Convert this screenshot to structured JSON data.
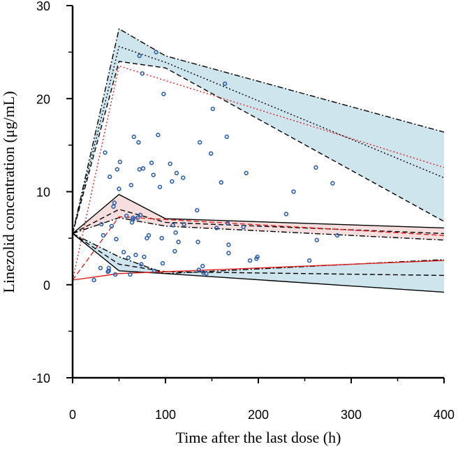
{
  "chart_data": {
    "type": "scatter",
    "title": "",
    "xlabel": "Time after the last dose (h)",
    "ylabel": "Linezolid concentration (μg/mL)",
    "xlim": [
      0,
      400
    ],
    "ylim": [
      -10,
      30
    ],
    "x_ticks": [
      0,
      100,
      200,
      300,
      400
    ],
    "x_tick_labels": [
      "0",
      "100",
      "200",
      "300",
      "400"
    ],
    "y_ticks": [
      -10,
      0,
      10,
      20,
      30
    ],
    "y_tick_labels": [
      "-10",
      "0",
      "10",
      "20",
      "30"
    ],
    "colors": {
      "points": "#2f5da8",
      "observed": "#e02020",
      "outer_band_fill": "#cfe5ee",
      "median_band_fill": "#f7dede",
      "simulated": "#000000"
    },
    "bands": [
      {
        "name": "95th percentile prediction interval",
        "fill": "#cfe5ee",
        "upper": {
          "x": [
            0,
            50,
            100,
            400
          ],
          "y": [
            5.5,
            27.5,
            24.6,
            16.4
          ]
        },
        "lower": {
          "x": [
            0,
            50,
            100,
            400
          ],
          "y": [
            5.5,
            24.0,
            23.3,
            6.8
          ]
        }
      },
      {
        "name": "median prediction interval",
        "fill": "#f7dede",
        "upper": {
          "x": [
            0,
            50,
            100,
            400
          ],
          "y": [
            5.5,
            9.7,
            7.1,
            6.1
          ]
        },
        "lower": {
          "x": [
            0,
            50,
            100,
            400
          ],
          "y": [
            5.5,
            7.2,
            6.3,
            4.8
          ]
        }
      },
      {
        "name": "5th percentile prediction interval",
        "fill": "#cfe5ee",
        "upper": {
          "x": [
            0,
            50,
            100,
            400
          ],
          "y": [
            5.5,
            3.0,
            1.2,
            2.7
          ]
        },
        "lower": {
          "x": [
            0,
            50,
            100,
            400
          ],
          "y": [
            5.5,
            1.5,
            1.2,
            -0.8
          ]
        }
      }
    ],
    "series": [
      {
        "name": "95th upper CI",
        "style": "dashdot",
        "color": "#000000",
        "x": [
          0,
          50,
          100,
          400
        ],
        "y": [
          5.5,
          27.5,
          24.6,
          16.4
        ]
      },
      {
        "name": "95th median",
        "style": "dotted",
        "color": "#000000",
        "x": [
          0,
          50,
          100,
          400
        ],
        "y": [
          5.5,
          25.6,
          23.9,
          11.5
        ]
      },
      {
        "name": "95th lower CI",
        "style": "dashed",
        "color": "#000000",
        "x": [
          0,
          50,
          100,
          400
        ],
        "y": [
          5.5,
          24.0,
          23.3,
          6.8
        ]
      },
      {
        "name": "95th observed",
        "style": "dotted",
        "color": "#e02020",
        "x": [
          0,
          50,
          400
        ],
        "y": [
          0.5,
          23.5,
          12.6
        ]
      },
      {
        "name": "median upper CI",
        "style": "solid",
        "color": "#000000",
        "x": [
          0,
          50,
          100,
          400
        ],
        "y": [
          5.5,
          9.7,
          7.1,
          6.1
        ]
      },
      {
        "name": "median median",
        "style": "dashed",
        "color": "#000000",
        "x": [
          0,
          50,
          100,
          400
        ],
        "y": [
          5.5,
          8.1,
          6.7,
          5.5
        ]
      },
      {
        "name": "median lower CI",
        "style": "dashdot",
        "color": "#000000",
        "x": [
          0,
          50,
          100,
          400
        ],
        "y": [
          5.5,
          7.2,
          6.3,
          4.8
        ]
      },
      {
        "name": "median observed",
        "style": "dashed",
        "color": "#e02020",
        "x": [
          0,
          50,
          400
        ],
        "y": [
          0.5,
          7.3,
          5.3
        ]
      },
      {
        "name": "5th upper CI",
        "style": "dashdot",
        "color": "#000000",
        "x": [
          0,
          50,
          100,
          400
        ],
        "y": [
          5.5,
          3.0,
          1.2,
          2.7
        ]
      },
      {
        "name": "5th median",
        "style": "dashed",
        "color": "#000000",
        "x": [
          0,
          50,
          100,
          400
        ],
        "y": [
          5.5,
          2.2,
          1.4,
          1.0
        ]
      },
      {
        "name": "5th lower CI",
        "style": "solid",
        "color": "#000000",
        "x": [
          0,
          50,
          100,
          400
        ],
        "y": [
          5.5,
          1.5,
          1.2,
          -0.8
        ]
      },
      {
        "name": "5th observed",
        "style": "solid",
        "color": "#e02020",
        "x": [
          0,
          50,
          400
        ],
        "y": [
          0.5,
          1.2,
          2.6
        ]
      }
    ],
    "points": [
      {
        "x": 23,
        "y": 0.5
      },
      {
        "x": 30,
        "y": 1.8
      },
      {
        "x": 31,
        "y": 6.5
      },
      {
        "x": 33,
        "y": 5.3
      },
      {
        "x": 35,
        "y": 14.2
      },
      {
        "x": 38,
        "y": 1.4
      },
      {
        "x": 39,
        "y": 1.8
      },
      {
        "x": 39,
        "y": 1.5
      },
      {
        "x": 40,
        "y": 11.6
      },
      {
        "x": 42,
        "y": 6.3
      },
      {
        "x": 44,
        "y": 8.4
      },
      {
        "x": 45,
        "y": 8.8
      },
      {
        "x": 46,
        "y": 1.1
      },
      {
        "x": 47,
        "y": 4.9
      },
      {
        "x": 48,
        "y": 12.4
      },
      {
        "x": 50,
        "y": 10.3
      },
      {
        "x": 51,
        "y": 13.2
      },
      {
        "x": 55,
        "y": 3.5
      },
      {
        "x": 58,
        "y": 7.4
      },
      {
        "x": 60,
        "y": 2.9
      },
      {
        "x": 62,
        "y": 1.1
      },
      {
        "x": 63,
        "y": 10.7
      },
      {
        "x": 64,
        "y": 6.7
      },
      {
        "x": 65,
        "y": 7.2
      },
      {
        "x": 65,
        "y": 7.0
      },
      {
        "x": 66,
        "y": 15.9
      },
      {
        "x": 68,
        "y": 3.2
      },
      {
        "x": 70,
        "y": 7.2
      },
      {
        "x": 71,
        "y": 15.3
      },
      {
        "x": 72,
        "y": 24.6
      },
      {
        "x": 72,
        "y": 12.4
      },
      {
        "x": 73,
        "y": 7.5
      },
      {
        "x": 74,
        "y": 2.2
      },
      {
        "x": 75,
        "y": 22.7
      },
      {
        "x": 76,
        "y": 12.5
      },
      {
        "x": 77,
        "y": 3.0
      },
      {
        "x": 80,
        "y": 5.0
      },
      {
        "x": 82,
        "y": 5.3
      },
      {
        "x": 85,
        "y": 13.1
      },
      {
        "x": 87,
        "y": 11.8
      },
      {
        "x": 88,
        "y": 1.5
      },
      {
        "x": 90,
        "y": 25.0
      },
      {
        "x": 92,
        "y": 16.1
      },
      {
        "x": 94,
        "y": 10.5
      },
      {
        "x": 96,
        "y": 5.0
      },
      {
        "x": 97,
        "y": 2.3
      },
      {
        "x": 98,
        "y": 20.5
      },
      {
        "x": 105,
        "y": 13.0
      },
      {
        "x": 107,
        "y": 11.1
      },
      {
        "x": 108,
        "y": 6.4
      },
      {
        "x": 110,
        "y": 3.6
      },
      {
        "x": 111,
        "y": 5.6
      },
      {
        "x": 112,
        "y": 12.0
      },
      {
        "x": 114,
        "y": 4.6
      },
      {
        "x": 119,
        "y": 11.5
      },
      {
        "x": 120,
        "y": 6.5
      },
      {
        "x": 134,
        "y": 8.0
      },
      {
        "x": 135,
        "y": 4.6
      },
      {
        "x": 136,
        "y": 1.6
      },
      {
        "x": 137,
        "y": 15.3
      },
      {
        "x": 140,
        "y": 2.0
      },
      {
        "x": 141,
        "y": 1.3
      },
      {
        "x": 144,
        "y": 1.2
      },
      {
        "x": 149,
        "y": 14.1
      },
      {
        "x": 151,
        "y": 18.9
      },
      {
        "x": 155,
        "y": 6.1
      },
      {
        "x": 160,
        "y": 11.0
      },
      {
        "x": 164,
        "y": 21.6
      },
      {
        "x": 166,
        "y": 15.9
      },
      {
        "x": 167,
        "y": 6.6
      },
      {
        "x": 168,
        "y": 4.3
      },
      {
        "x": 168,
        "y": 3.4
      },
      {
        "x": 184,
        "y": 6.2
      },
      {
        "x": 187,
        "y": 12.0
      },
      {
        "x": 191,
        "y": 2.6
      },
      {
        "x": 198,
        "y": 2.8
      },
      {
        "x": 199,
        "y": 3.0
      },
      {
        "x": 230,
        "y": 7.6
      },
      {
        "x": 238,
        "y": 10.0
      },
      {
        "x": 255,
        "y": 2.6
      },
      {
        "x": 262,
        "y": 12.6
      },
      {
        "x": 263,
        "y": 4.8
      },
      {
        "x": 280,
        "y": 10.9
      },
      {
        "x": 285,
        "y": 5.3
      }
    ]
  }
}
